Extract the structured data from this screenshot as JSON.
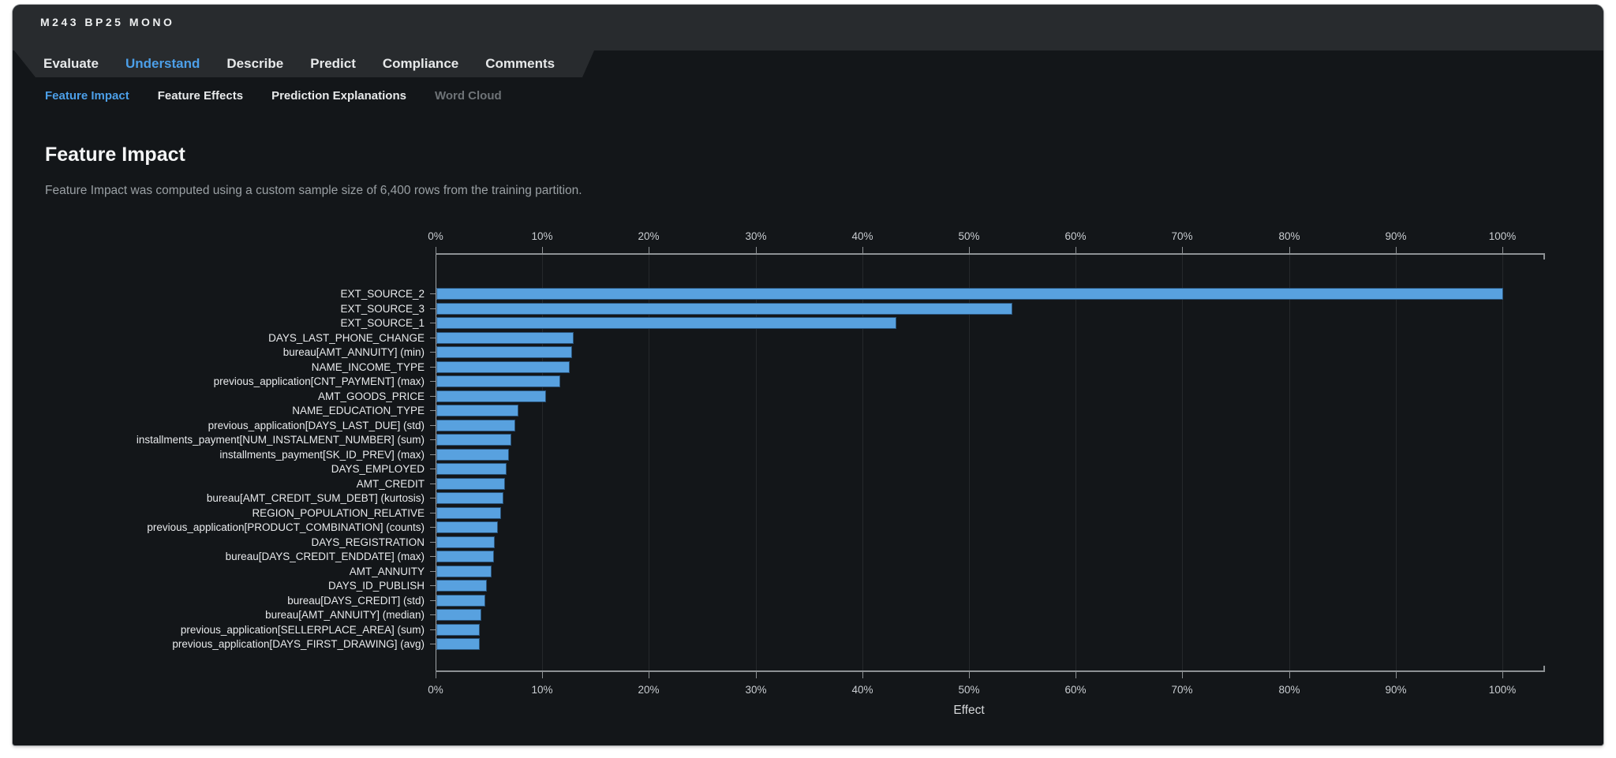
{
  "window": {
    "badge": "M243 BP25 MONO"
  },
  "nav_tabs": {
    "items": [
      {
        "label": "Evaluate",
        "active": false
      },
      {
        "label": "Understand",
        "active": true
      },
      {
        "label": "Describe",
        "active": false
      },
      {
        "label": "Predict",
        "active": false
      },
      {
        "label": "Compliance",
        "active": false
      },
      {
        "label": "Comments",
        "active": false
      }
    ]
  },
  "sub_tabs": {
    "items": [
      {
        "label": "Feature Impact",
        "active": true,
        "disabled": false
      },
      {
        "label": "Feature Effects",
        "active": false,
        "disabled": false
      },
      {
        "label": "Prediction Explanations",
        "active": false,
        "disabled": false
      },
      {
        "label": "Word Cloud",
        "active": false,
        "disabled": true
      }
    ]
  },
  "page": {
    "title": "Feature Impact",
    "subtitle": "Feature Impact was computed using a custom sample size of 6,400 rows from the training partition."
  },
  "colors": {
    "accent_blue": "#4c9fe8",
    "bar_fill": "#58a1df",
    "panel_bg": "#131619",
    "band_bg": "#282b2e",
    "axis_text": "#c9cdd1",
    "disabled_text": "#6e7377"
  },
  "chart_data": {
    "type": "bar",
    "orientation": "horizontal",
    "title": "Feature Impact",
    "xlabel": "Effect",
    "ylabel": "",
    "xlim": [
      0,
      104
    ],
    "grid": true,
    "x_tick_labels": [
      "0%",
      "10%",
      "20%",
      "30%",
      "40%",
      "50%",
      "60%",
      "70%",
      "80%",
      "90%",
      "100%"
    ],
    "x_tick_values": [
      0,
      10,
      20,
      30,
      40,
      50,
      60,
      70,
      80,
      90,
      100
    ],
    "categories": [
      "EXT_SOURCE_2",
      "EXT_SOURCE_3",
      "EXT_SOURCE_1",
      "DAYS_LAST_PHONE_CHANGE",
      "bureau[AMT_ANNUITY] (min)",
      "NAME_INCOME_TYPE",
      "previous_application[CNT_PAYMENT] (max)",
      "AMT_GOODS_PRICE",
      "NAME_EDUCATION_TYPE",
      "previous_application[DAYS_LAST_DUE] (std)",
      "installments_payment[NUM_INSTALMENT_NUMBER] (sum)",
      "installments_payment[SK_ID_PREV] (max)",
      "DAYS_EMPLOYED",
      "AMT_CREDIT",
      "bureau[AMT_CREDIT_SUM_DEBT] (kurtosis)",
      "REGION_POPULATION_RELATIVE",
      "previous_application[PRODUCT_COMBINATION] (counts)",
      "DAYS_REGISTRATION",
      "bureau[DAYS_CREDIT_ENDDATE] (max)",
      "AMT_ANNUITY",
      "DAYS_ID_PUBLISH",
      "bureau[DAYS_CREDIT] (std)",
      "bureau[AMT_ANNUITY] (median)",
      "previous_application[SELLERPLACE_AREA] (sum)",
      "previous_application[DAYS_FIRST_DRAWING] (avg)"
    ],
    "values": [
      100,
      54,
      43.1,
      12.9,
      12.7,
      12.5,
      11.6,
      10.3,
      7.7,
      7.4,
      7.0,
      6.8,
      6.6,
      6.4,
      6.3,
      6.1,
      5.8,
      5.5,
      5.4,
      5.2,
      4.7,
      4.6,
      4.2,
      4.1,
      4.1
    ],
    "value_unit": "%"
  }
}
